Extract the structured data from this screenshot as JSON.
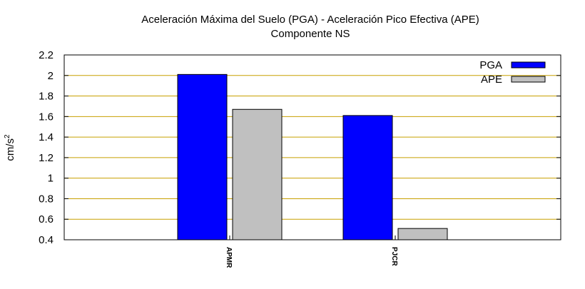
{
  "chart_data": {
    "type": "bar",
    "title_line1": "Aceleración Máxima del Suelo (PGA) -  Aceleración Pico Efectiva (APE)",
    "title_line2": "Componente NS",
    "ylabel": "cm/s",
    "ylabel_sup": "2",
    "xlabel": "",
    "ylim": [
      0.4,
      2.2
    ],
    "yticks": [
      "0.4",
      "0.6",
      "0.8",
      "1",
      "1.2",
      "1.4",
      "1.6",
      "1.8",
      "2",
      "2.2"
    ],
    "grid": "horizontal",
    "legend_position": "top-right",
    "categories": [
      "APMR",
      "PJCR"
    ],
    "series": [
      {
        "name": "PGA",
        "color": "#0000ff",
        "values": [
          2.01,
          1.61
        ]
      },
      {
        "name": "APE",
        "color": "#c0c0c0",
        "values": [
          1.67,
          0.51
        ]
      }
    ],
    "grid_color": "#c8a000"
  }
}
